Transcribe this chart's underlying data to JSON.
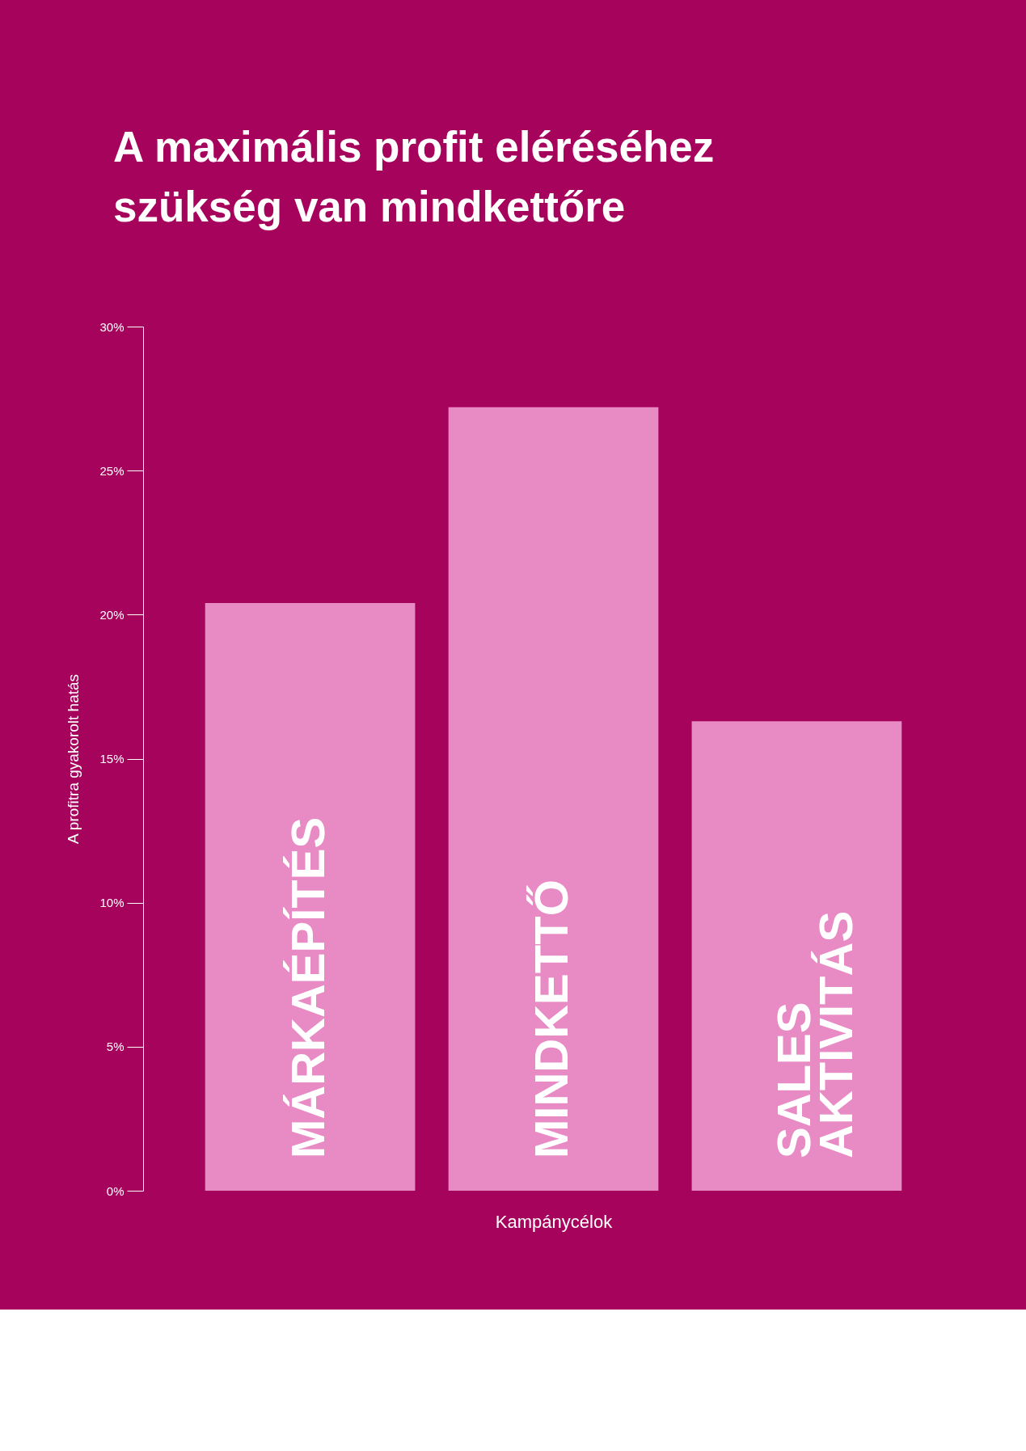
{
  "chart_data": {
    "type": "bar",
    "title": "A maximális profit eléréséhez szükség van mindkettőre",
    "xlabel": "Kampánycélok",
    "ylabel": "A profitra gyakorolt hatás",
    "categories": [
      "MÁRKAÉPÍTÉS",
      "MINDKETTŐ",
      "SALES AKTIVITÁS"
    ],
    "values": [
      20.4,
      27.2,
      16.3
    ],
    "color": "#e88ac4",
    "ylim": [
      0,
      30
    ],
    "yticks": [
      {
        "value": 0,
        "label": "0%"
      },
      {
        "value": 5,
        "label": "5%"
      },
      {
        "value": 10,
        "label": "10%"
      },
      {
        "value": 15,
        "label": "15%"
      },
      {
        "value": 20,
        "label": "20%"
      },
      {
        "value": 25,
        "label": "25%"
      },
      {
        "value": 30,
        "label": "30%"
      }
    ],
    "grid": false
  }
}
